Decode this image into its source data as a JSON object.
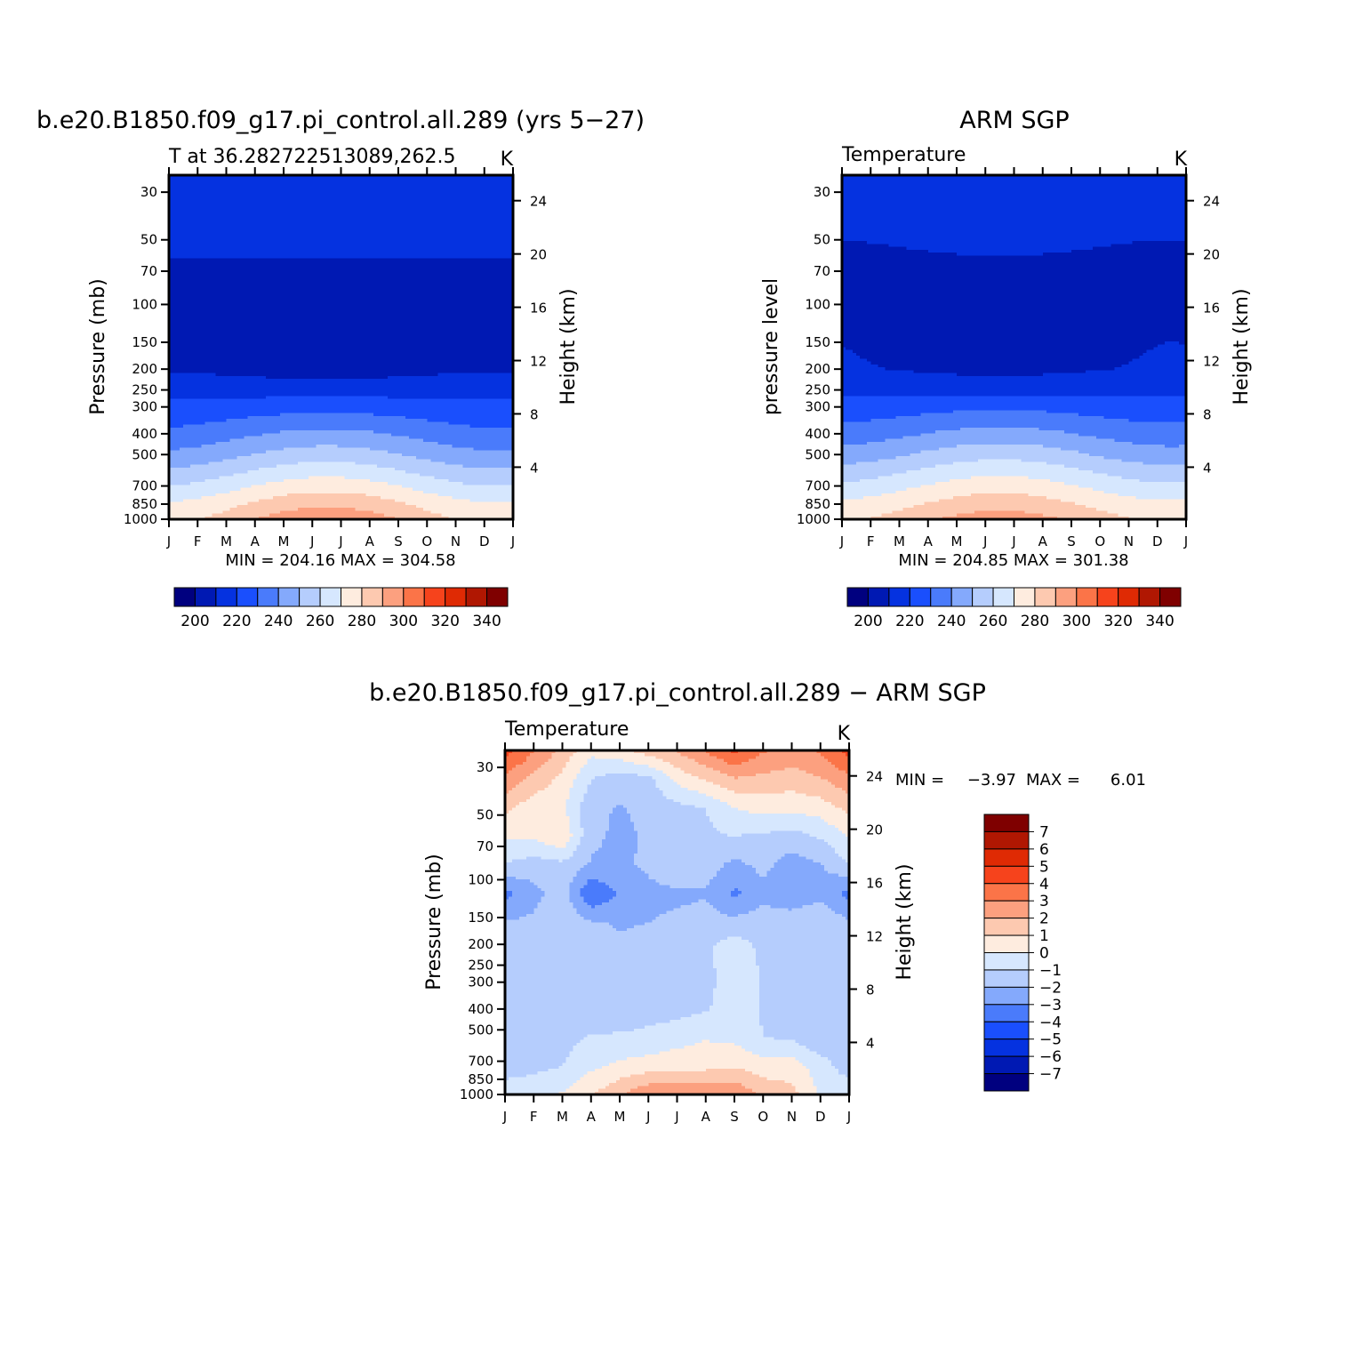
{
  "colors": {
    "abs_palette": [
      "#00007f",
      "#0019b3",
      "#0532e0",
      "#1a4ffd",
      "#4a7bfb",
      "#84a9fc",
      "#b5cdfd",
      "#d6e7fe",
      "#feecdf",
      "#fdc9b0",
      "#fca07f",
      "#fb7448",
      "#f6431c",
      "#df2a04",
      "#b01702",
      "#7f0000"
    ],
    "diff_palette": [
      "#00007f",
      "#0019b3",
      "#0532e0",
      "#1a4ffd",
      "#4a7bfb",
      "#84a9fc",
      "#b5cdfd",
      "#d6e7fe",
      "#feecdf",
      "#fdc9b0",
      "#fca07f",
      "#fb7448",
      "#f6431c",
      "#df2a04",
      "#b01702",
      "#7f0000"
    ]
  },
  "chart_data": [
    {
      "type": "heatmap",
      "id": "model",
      "title": "b.e20.B1850.f09_g17.pi_control.all.289 (yrs 5−27)",
      "subtitle_left": "T at 36.282722513089,262.5",
      "subtitle_right": "K",
      "ylabel": "Pressure (mb)",
      "ylabel_right": "Height (km)",
      "x": [
        "J",
        "F",
        "M",
        "A",
        "M",
        "J",
        "J",
        "A",
        "S",
        "O",
        "N",
        "D",
        "J"
      ],
      "y_pressure_ticks": [
        "30",
        "50",
        "70",
        "100",
        "150",
        "200",
        "250",
        "300",
        "400",
        "500",
        "700",
        "850",
        "1000"
      ],
      "y_height_ticks": [
        "24",
        "20",
        "16",
        "12",
        "8",
        "4"
      ],
      "levels": [
        195,
        205,
        215,
        225,
        235,
        245,
        255,
        265,
        275,
        285,
        295,
        305,
        315,
        325,
        335,
        345
      ],
      "colorbar_labels": [
        "200",
        "220",
        "240",
        "260",
        "280",
        "300",
        "320",
        "340"
      ],
      "stats": "MIN = 204.16 MAX = 304.58",
      "profile_jan": {
        "30": 217,
        "50": 218,
        "70": 213,
        "100": 211,
        "150": 212,
        "200": 214,
        "250": 221,
        "300": 228,
        "400": 237,
        "500": 247,
        "700": 265,
        "850": 276,
        "1000": 281
      },
      "profile_jul": {
        "30": 222,
        "50": 219,
        "70": 212,
        "100": 206,
        "150": 206,
        "200": 210,
        "250": 221,
        "300": 231,
        "400": 248,
        "500": 260,
        "700": 281,
        "850": 293,
        "1000": 303
      },
      "seasonal_skew": 0.5
    },
    {
      "type": "heatmap",
      "id": "obs",
      "title": "ARM SGP",
      "subtitle_left": "Temperature",
      "subtitle_right": "K",
      "ylabel": "pressure level",
      "ylabel_right": "Height (km)",
      "x": [
        "J",
        "F",
        "M",
        "A",
        "M",
        "J",
        "J",
        "A",
        "S",
        "O",
        "N",
        "D",
        "J"
      ],
      "y_pressure_ticks": [
        "30",
        "50",
        "70",
        "100",
        "150",
        "200",
        "250",
        "300",
        "400",
        "500",
        "700",
        "850",
        "1000"
      ],
      "y_height_ticks": [
        "24",
        "20",
        "16",
        "12",
        "8",
        "4"
      ],
      "levels": [
        195,
        205,
        215,
        225,
        235,
        245,
        255,
        265,
        275,
        285,
        295,
        305,
        315,
        325,
        335,
        345
      ],
      "colorbar_labels": [
        "200",
        "220",
        "240",
        "260",
        "280",
        "300",
        "320",
        "340"
      ],
      "stats": "MIN = 204.85 MAX = 301.38",
      "profile_jan": {
        "30": 217,
        "50": 215,
        "70": 211,
        "100": 213,
        "150": 215,
        "200": 216,
        "250": 222,
        "300": 229,
        "400": 239,
        "500": 249,
        "700": 267,
        "850": 277,
        "1000": 283
      },
      "profile_jul": {
        "30": 222,
        "50": 218,
        "70": 212,
        "100": 208,
        "150": 206,
        "200": 212,
        "250": 222,
        "300": 233,
        "400": 249,
        "500": 262,
        "700": 281,
        "850": 291,
        "1000": 300
      },
      "seasonal_skew": 0.5
    },
    {
      "type": "heatmap",
      "id": "diff",
      "title": "b.e20.B1850.f09_g17.pi_control.all.289 − ARM SGP",
      "subtitle_left": "Temperature",
      "subtitle_right": "K",
      "ylabel": "Pressure (mb)",
      "ylabel_right": "Height (km)",
      "x": [
        "J",
        "F",
        "M",
        "A",
        "M",
        "J",
        "J",
        "A",
        "S",
        "O",
        "N",
        "D",
        "J"
      ],
      "y_pressure_ticks": [
        "30",
        "50",
        "70",
        "100",
        "150",
        "200",
        "250",
        "300",
        "400",
        "500",
        "700",
        "850",
        "1000"
      ],
      "y_height_ticks": [
        "24",
        "20",
        "16",
        "12",
        "8",
        "4"
      ],
      "levels": [
        -7.5,
        -6.5,
        -5.5,
        -4.5,
        -3.5,
        -2.5,
        -1.5,
        -0.5,
        0.5,
        1.5,
        2.5,
        3.5,
        4.5,
        5.5,
        6.5,
        7.5
      ],
      "colorbar_labels": [
        "7",
        "6",
        "5",
        "4",
        "3",
        "2",
        "1",
        "0",
        "−1",
        "−2",
        "−3",
        "−4",
        "−5",
        "−6",
        "−7"
      ],
      "stats_min_label": "MIN =",
      "stats_min": "−3.97",
      "stats_max_label": "MAX =",
      "stats_max": "6.01",
      "grid_values": [
        [
          5.0,
          3.6,
          2.2,
          0.8,
          1.2,
          2.0,
          2.6,
          3.6,
          4.8,
          3.6,
          3.2,
          3.6,
          5.0
        ],
        [
          3.2,
          2.2,
          1.2,
          -0.5,
          -1.0,
          -0.8,
          0.8,
          1.6,
          2.4,
          2.2,
          2.0,
          2.4,
          3.2
        ],
        [
          1.8,
          0.9,
          0.7,
          -1.2,
          -1.6,
          -1.2,
          -0.8,
          -0.5,
          0.5,
          0.9,
          0.8,
          1.0,
          1.8
        ],
        [
          0.6,
          0.7,
          1.4,
          -1.3,
          -1.7,
          -1.4,
          -0.6,
          -0.7,
          -0.5,
          -0.7,
          -0.9,
          -0.4,
          0.6
        ],
        [
          -0.6,
          -1.0,
          -0.8,
          -1.6,
          -1.7,
          -1.3,
          -0.6,
          -1.0,
          -1.8,
          -1.2,
          -2.0,
          -1.6,
          -0.6
        ],
        [
          -2.8,
          -1.8,
          -1.0,
          -3.5,
          -2.4,
          -1.8,
          -1.7,
          -1.6,
          -2.7,
          -1.9,
          -2.4,
          -1.8,
          -2.8
        ],
        [
          -1.4,
          -1.3,
          -0.6,
          -1.4,
          -1.6,
          -1.5,
          -1.3,
          -1.1,
          -1.2,
          -0.9,
          -0.8,
          -0.6,
          -1.4
        ],
        [
          -1.0,
          -1.4,
          -0.8,
          -1.0,
          -1.3,
          -1.2,
          -0.8,
          -0.7,
          0.3,
          -0.8,
          -0.6,
          -0.6,
          -1.0
        ],
        [
          -0.8,
          -0.7,
          -1.0,
          -1.1,
          -1.2,
          -0.9,
          -1.3,
          -1.0,
          0.4,
          -0.6,
          -0.8,
          -0.9,
          -0.8
        ],
        [
          -0.9,
          -1.2,
          -1.1,
          -1.4,
          -1.5,
          -1.0,
          -0.9,
          -0.6,
          0.1,
          -0.6,
          -0.8,
          -1.3,
          -0.9
        ],
        [
          -1.3,
          -0.8,
          -0.9,
          -0.4,
          -0.3,
          -0.2,
          0.1,
          0.4,
          0.2,
          -0.5,
          -0.7,
          -1.4,
          -1.3
        ],
        [
          -1.1,
          -0.8,
          -0.5,
          0.3,
          0.7,
          0.9,
          1.1,
          1.2,
          1.4,
          0.9,
          1.0,
          0.0,
          -1.1
        ],
        [
          0.2,
          0.2,
          0.6,
          1.4,
          2.4,
          3.4,
          3.6,
          3.2,
          3.4,
          2.3,
          1.8,
          0.4,
          0.2
        ]
      ]
    }
  ]
}
